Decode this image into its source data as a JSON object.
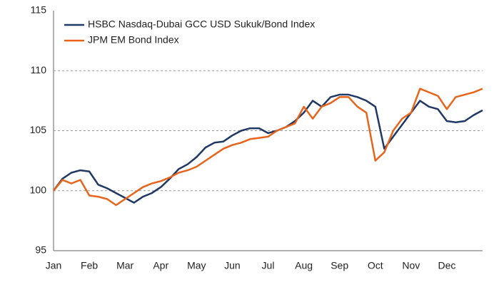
{
  "chart_data": {
    "type": "line",
    "categories": [
      "Jan",
      null,
      null,
      null,
      "Feb",
      null,
      null,
      null,
      "Mar",
      null,
      null,
      null,
      "Apr",
      null,
      null,
      null,
      "May",
      null,
      null,
      null,
      "Jun",
      null,
      null,
      null,
      "Jul",
      null,
      null,
      null,
      "Aug",
      null,
      null,
      null,
      "Sep",
      null,
      null,
      null,
      "Oct",
      null,
      null,
      null,
      "Nov",
      null,
      null,
      null,
      "Dec",
      null,
      null,
      null,
      null
    ],
    "series": [
      {
        "name": "HSBC Nasdaq-Dubai GCC USD Sukuk/Bond Index",
        "color": "#1f3864",
        "values": [
          100,
          101.0,
          101.5,
          101.7,
          101.6,
          100.5,
          100.2,
          99.8,
          99.4,
          99.0,
          99.5,
          99.8,
          100.3,
          101.0,
          101.8,
          102.2,
          102.8,
          103.6,
          104.0,
          104.1,
          104.6,
          105.0,
          105.2,
          105.2,
          104.8,
          105.0,
          105.3,
          105.8,
          106.5,
          107.5,
          107.0,
          107.8,
          108.0,
          108.0,
          107.8,
          107.5,
          107.0,
          103.5,
          104.5,
          105.5,
          106.5,
          107.5,
          107.0,
          106.8,
          105.8,
          105.7,
          105.8,
          106.3,
          106.7
        ]
      },
      {
        "name": "JPM EM Bond Index",
        "color": "#e8641b",
        "values": [
          100,
          100.9,
          100.6,
          100.9,
          99.6,
          99.5,
          99.3,
          98.8,
          99.3,
          99.8,
          100.3,
          100.6,
          100.8,
          101.1,
          101.5,
          101.7,
          102.0,
          102.5,
          103.0,
          103.5,
          103.8,
          104.0,
          104.3,
          104.4,
          104.5,
          105.0,
          105.3,
          105.6,
          107.0,
          106.0,
          107.0,
          107.3,
          107.8,
          107.8,
          107.0,
          106.5,
          102.5,
          103.2,
          105.0,
          106.0,
          106.5,
          108.5,
          108.2,
          107.9,
          106.8,
          107.8,
          108.0,
          108.2,
          108.5
        ]
      }
    ],
    "ylim": [
      95,
      115
    ],
    "yticks": [
      95,
      100,
      105,
      110,
      115
    ],
    "grid": true,
    "legend": "top-left"
  }
}
